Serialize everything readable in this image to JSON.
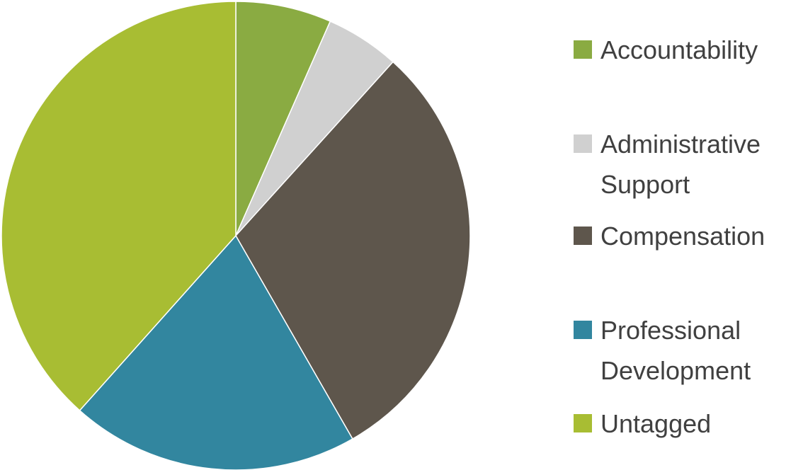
{
  "chart_data": {
    "type": "pie",
    "categories": [
      "Accountability",
      "Administrative Support",
      "Compensation",
      "Professional Development",
      "Untagged"
    ],
    "values": [
      6.6,
      5.1,
      30,
      19.9,
      38.4
    ],
    "colors": [
      "#8aab42",
      "#d0d0d0",
      "#5e564c",
      "#32869f",
      "#a8bd33"
    ],
    "legend": "right"
  }
}
